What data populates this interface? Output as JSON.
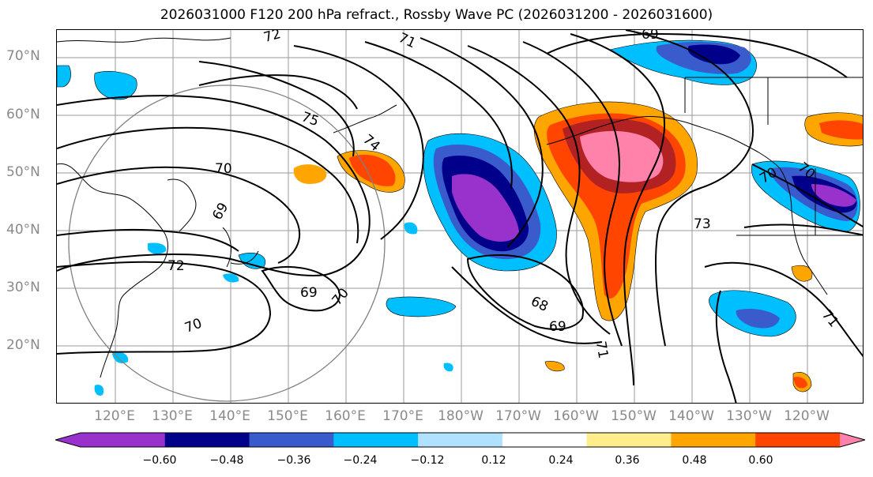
{
  "title": "2026031000 F120 200 hPa refract., Rossby Wave PC (2026031200 - 2026031600)",
  "latitude_labels": [
    "70°N",
    "60°N",
    "50°N",
    "40°N",
    "30°N",
    "20°N"
  ],
  "longitude_labels": [
    "120°E",
    "130°E",
    "140°E",
    "150°E",
    "160°E",
    "170°E",
    "180°W",
    "170°W",
    "160°W",
    "150°W",
    "140°W",
    "130°W",
    "120°W"
  ],
  "contour_labels": [
    "72",
    "71",
    "69",
    "75",
    "74",
    "70",
    "69",
    "72",
    "70",
    "69",
    "70",
    "70",
    "68",
    "69",
    "71",
    "73",
    "70",
    "71"
  ],
  "colorbar": {
    "tick_labels": [
      "−0.60",
      "−0.48",
      "−0.36",
      "−0.24",
      "−0.12",
      "0.12",
      "0.24",
      "0.36",
      "0.48",
      "0.60"
    ],
    "colors": [
      "#9932cc",
      "#00008b",
      "#3a5bcc",
      "#00bfff",
      "#b0e2ff",
      "#ffffff",
      "#ffec8b",
      "#ffa500",
      "#ff4500",
      "#b22222",
      "#ff82ab"
    ]
  }
}
